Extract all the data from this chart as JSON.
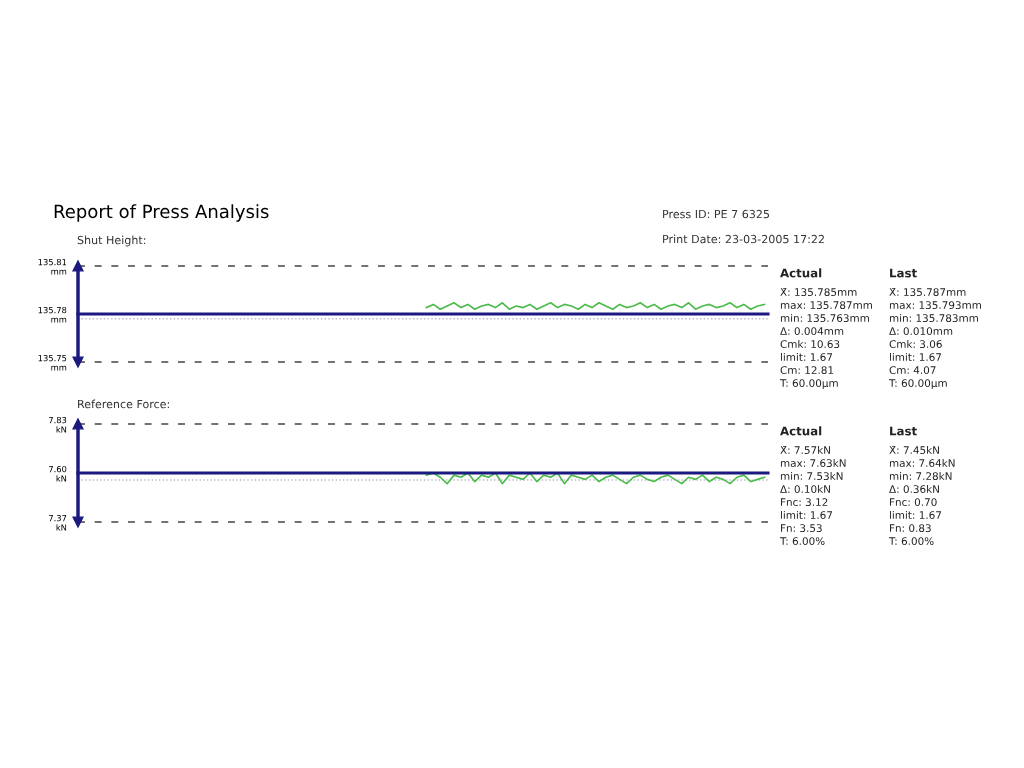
{
  "chart_data": [
    {
      "type": "line",
      "title": "Report of Press Analysis",
      "subtitle": "Shut Height:",
      "categories": [
        null,
        null,
        null,
        null,
        null,
        null,
        null,
        null,
        null,
        null,
        null,
        null,
        null,
        null,
        null,
        null,
        null,
        null,
        null,
        null,
        null,
        null,
        null,
        null,
        null,
        null,
        null,
        null,
        null,
        null,
        null,
        null,
        null,
        null,
        null,
        null,
        null,
        null,
        null,
        null,
        null,
        null,
        null,
        null,
        null,
        null,
        null,
        null,
        null,
        null,
        null,
        null,
        null,
        null,
        null,
        null,
        null,
        null,
        null,
        null,
        null,
        null,
        null,
        null,
        null,
        null,
        null,
        null,
        null,
        null,
        null,
        null,
        null,
        null,
        null,
        null,
        null,
        null,
        null,
        null,
        null,
        null,
        null,
        null,
        null,
        null,
        null,
        null,
        null,
        null,
        null,
        null,
        null,
        null,
        null,
        null,
        null,
        null,
        null,
        null
      ],
      "series": [
        {
          "color": "#4cbb4c",
          "values": [
            null,
            null,
            null,
            null,
            null,
            null,
            null,
            null,
            null,
            null,
            null,
            null,
            null,
            null,
            null,
            null,
            null,
            null,
            null,
            null,
            null,
            null,
            null,
            null,
            null,
            null,
            null,
            null,
            null,
            null,
            null,
            null,
            null,
            null,
            null,
            null,
            null,
            null,
            null,
            null,
            null,
            null,
            null,
            null,
            null,
            null,
            null,
            null,
            null,
            null,
            135.784,
            135.786,
            135.783,
            135.785,
            135.787,
            135.784,
            135.786,
            135.783,
            135.785,
            135.786,
            135.784,
            135.787,
            135.783,
            135.785,
            135.784,
            135.786,
            135.783,
            135.785,
            135.787,
            135.784,
            135.786,
            135.785,
            135.783,
            135.786,
            135.784,
            135.787,
            135.785,
            135.783,
            135.786,
            135.784,
            135.785,
            135.787,
            135.784,
            135.786,
            135.783,
            135.785,
            135.786,
            135.784,
            135.787,
            135.783,
            135.785,
            135.786,
            135.784,
            135.785,
            135.787,
            135.784,
            135.786,
            135.783,
            135.785,
            135.786
          ]
        }
      ],
      "ylim": [
        135.75,
        135.81
      ],
      "yticks": [
        {
          "value": 135.75,
          "label": "135.75\nmm"
        },
        {
          "value": 135.78,
          "label": "135.78\nmm"
        },
        {
          "value": 135.81,
          "label": "135.81\nmm"
        }
      ],
      "tick_labels": "y",
      "ref_lines": [
        {
          "axis": "y",
          "value": 135.81,
          "color": "#444444",
          "line_style": "dashed"
        },
        {
          "axis": "y",
          "value": 135.75,
          "color": "#444444",
          "line_style": "dashed"
        },
        {
          "axis": "y",
          "value": 135.78,
          "color": "#1a1a80",
          "line_style": "solid"
        },
        {
          "axis": "y",
          "value": 135.777,
          "color": "#b8b8c8",
          "line_style": "dotted"
        }
      ],
      "annotations": [
        "Press ID: PE 7 6325",
        "Print Date: 23-03-2005 17:22",
        "Actual",
        "X̄: 135.785mm",
        "max: 135.787mm",
        "min: 135.763mm",
        "Δ: 0.004mm",
        "Cmk: 10.63",
        "limit: 1.67",
        "Cm: 12.81",
        "T: 60.00µm",
        "Last",
        "X̄: 135.787mm",
        "max: 135.793mm",
        "min: 135.783mm",
        "Δ: 0.010mm",
        "Cmk: 3.06",
        "limit: 1.67",
        "Cm: 4.07",
        "T: 60.00µm"
      ]
    },
    {
      "type": "line",
      "title": "Reference Force:",
      "categories": [
        null,
        null,
        null,
        null,
        null,
        null,
        null,
        null,
        null,
        null,
        null,
        null,
        null,
        null,
        null,
        null,
        null,
        null,
        null,
        null,
        null,
        null,
        null,
        null,
        null,
        null,
        null,
        null,
        null,
        null,
        null,
        null,
        null,
        null,
        null,
        null,
        null,
        null,
        null,
        null,
        null,
        null,
        null,
        null,
        null,
        null,
        null,
        null,
        null,
        null,
        null,
        null,
        null,
        null,
        null,
        null,
        null,
        null,
        null,
        null,
        null,
        null,
        null,
        null,
        null,
        null,
        null,
        null,
        null,
        null,
        null,
        null,
        null,
        null,
        null,
        null,
        null,
        null,
        null,
        null,
        null,
        null,
        null,
        null,
        null,
        null,
        null,
        null,
        null,
        null,
        null,
        null,
        null,
        null,
        null,
        null,
        null,
        null,
        null,
        null
      ],
      "series": [
        {
          "color": "#4cbb4c",
          "values": [
            null,
            null,
            null,
            null,
            null,
            null,
            null,
            null,
            null,
            null,
            null,
            null,
            null,
            null,
            null,
            null,
            null,
            null,
            null,
            null,
            null,
            null,
            null,
            null,
            null,
            null,
            null,
            null,
            null,
            null,
            null,
            null,
            null,
            null,
            null,
            null,
            null,
            null,
            null,
            null,
            null,
            null,
            null,
            null,
            null,
            null,
            null,
            null,
            null,
            null,
            7.59,
            7.6,
            7.58,
            7.55,
            7.59,
            7.58,
            7.6,
            7.56,
            7.59,
            7.58,
            7.6,
            7.55,
            7.59,
            7.58,
            7.57,
            7.6,
            7.56,
            7.59,
            7.58,
            7.6,
            7.55,
            7.59,
            7.58,
            7.57,
            7.59,
            7.56,
            7.58,
            7.59,
            7.57,
            7.55,
            7.58,
            7.59,
            7.57,
            7.56,
            7.58,
            7.59,
            7.57,
            7.55,
            7.58,
            7.57,
            7.59,
            7.56,
            7.58,
            7.57,
            7.55,
            7.58,
            7.59,
            7.56,
            7.57,
            7.58
          ]
        }
      ],
      "ylim": [
        7.37,
        7.83
      ],
      "yticks": [
        {
          "value": 7.37,
          "label": "7.37\nkN"
        },
        {
          "value": 7.6,
          "label": "7.60\nkN"
        },
        {
          "value": 7.83,
          "label": "7.83\nkN"
        }
      ],
      "tick_labels": "y",
      "ref_lines": [
        {
          "axis": "y",
          "value": 7.83,
          "color": "#444444",
          "line_style": "dashed"
        },
        {
          "axis": "y",
          "value": 7.37,
          "color": "#444444",
          "line_style": "dashed"
        },
        {
          "axis": "y",
          "value": 7.6,
          "color": "#1a1a80",
          "line_style": "solid"
        },
        {
          "axis": "y",
          "value": 7.567,
          "color": "#b8b8c8",
          "line_style": "dotted"
        }
      ],
      "annotations": [
        "Actual",
        "X̄: 7.57kN",
        "max: 7.63kN",
        "min: 7.53kN",
        "Δ: 0.10kN",
        "Fnc: 3.12",
        "limit: 1.67",
        "Fn: 3.53",
        "T: 6.00%",
        "Last",
        "X̄: 7.45kN",
        "max: 7.64kN",
        "min: 7.28kN",
        "Δ: 0.36kN",
        "Fnc: 0.70",
        "limit: 1.67",
        "Fn: 0.83",
        "T: 6.00%"
      ]
    }
  ]
}
